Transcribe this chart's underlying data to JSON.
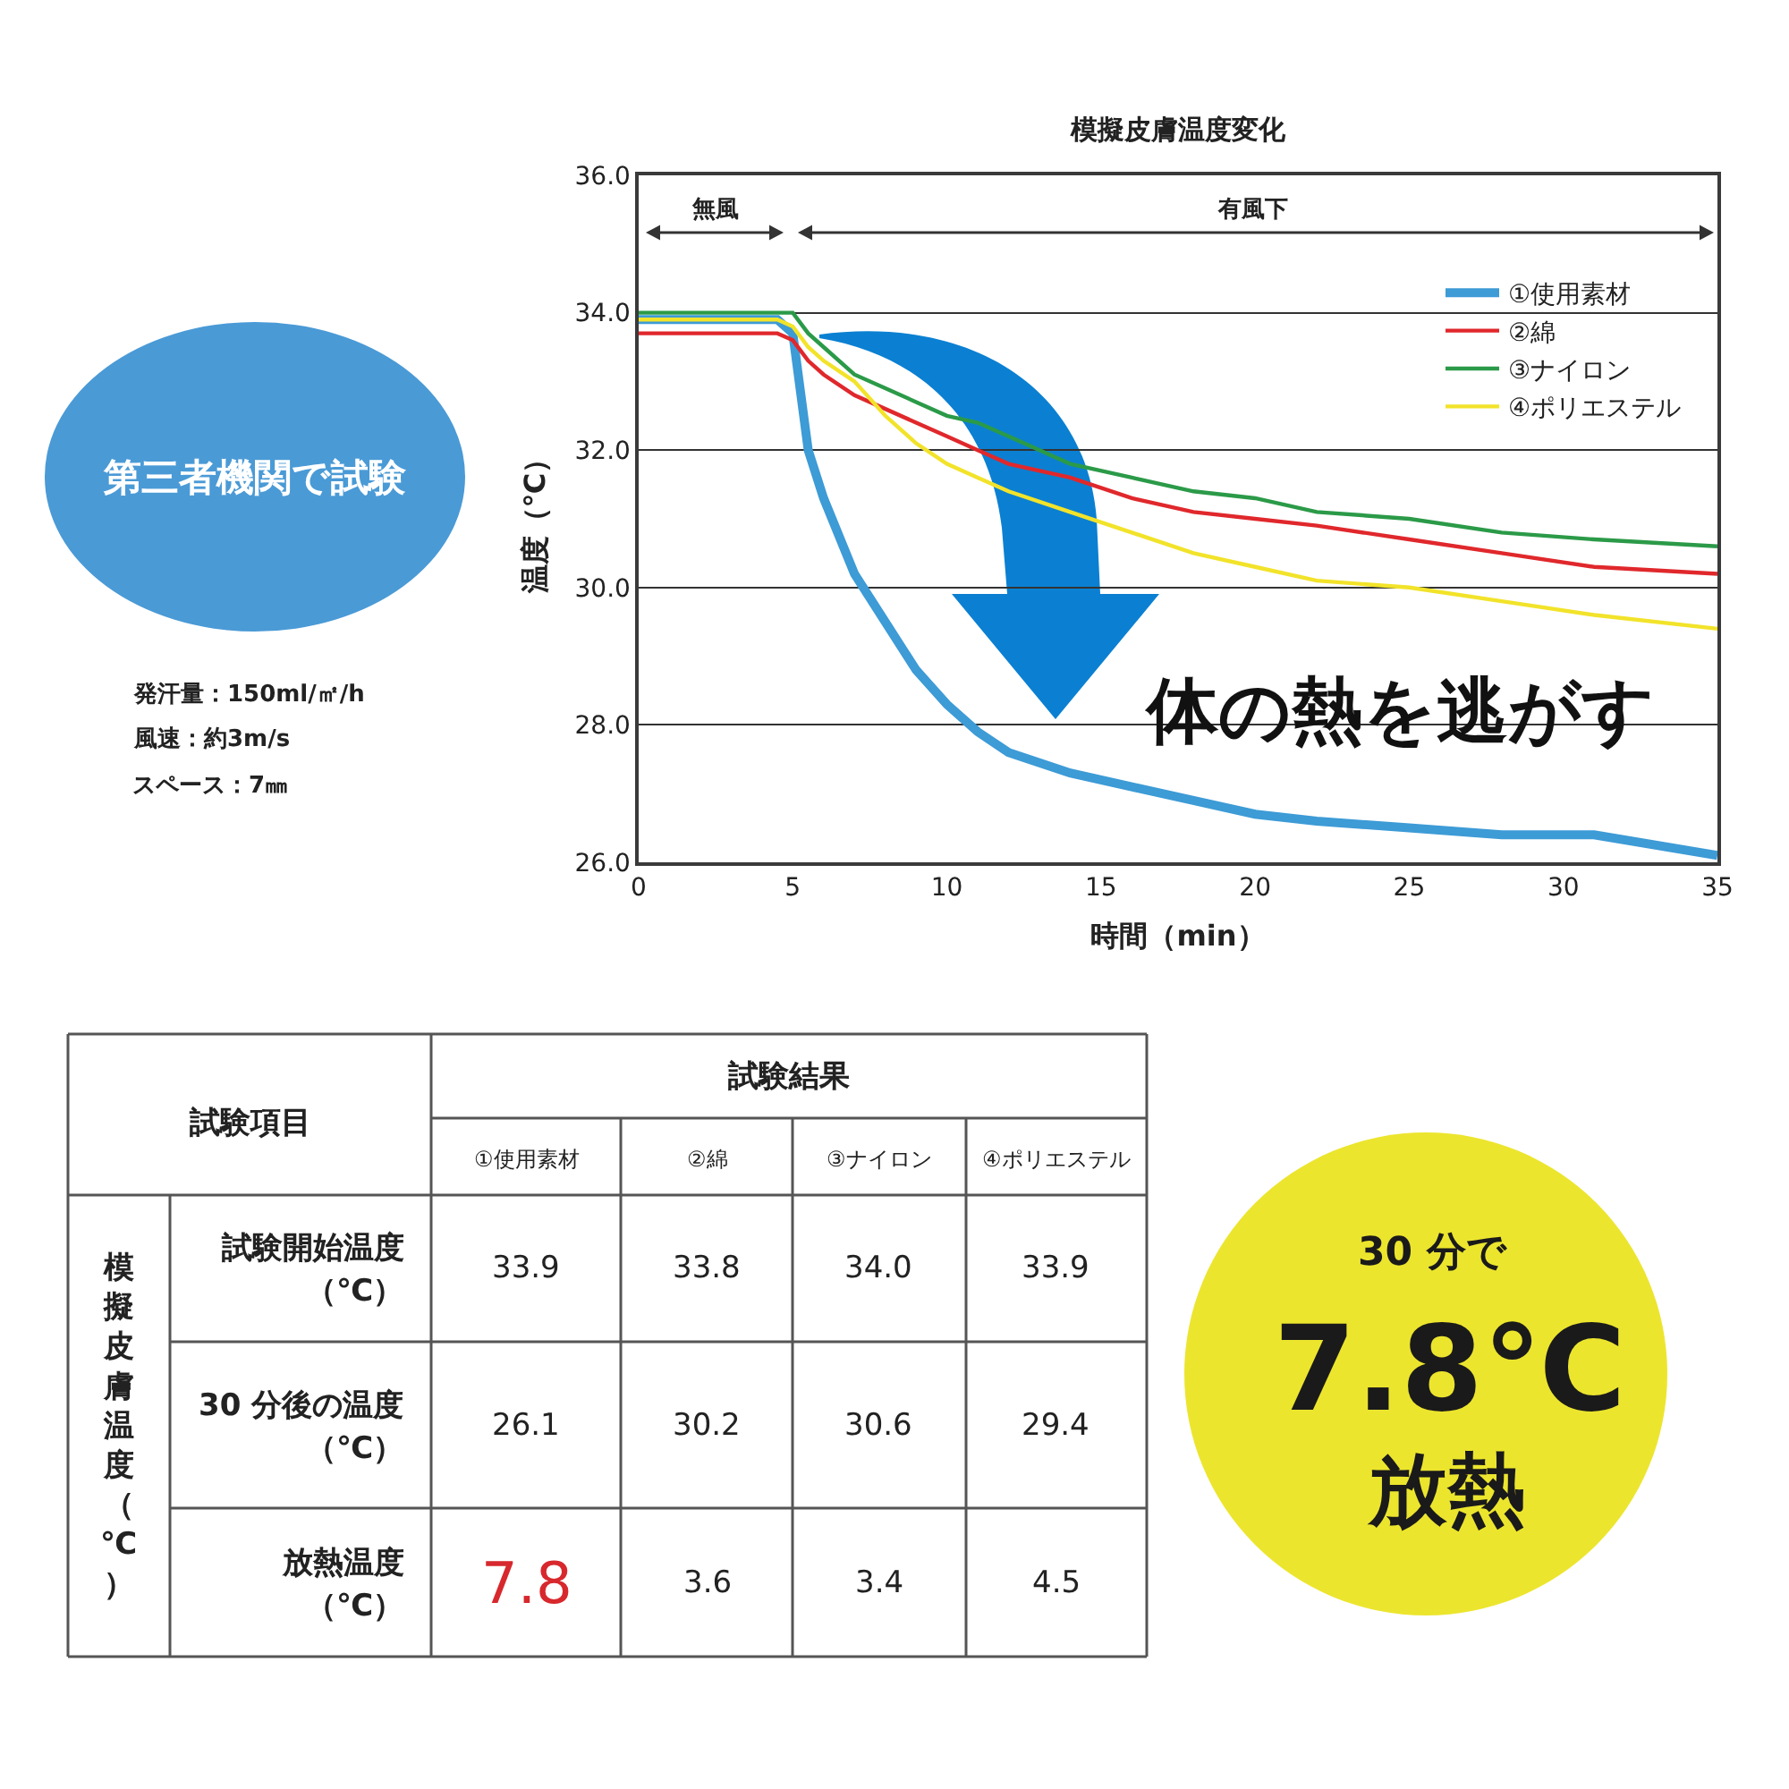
{
  "chart_data": {
    "type": "line",
    "title": "模擬皮膚温度変化",
    "xlabel": "時間（min）",
    "ylabel": "温度（℃）",
    "x": [
      0,
      4.5,
      5,
      5.5,
      6,
      7,
      8,
      9,
      10,
      11,
      12,
      14,
      16,
      18,
      20,
      22,
      25,
      28,
      31,
      35
    ],
    "series": [
      {
        "name": "①使用素材",
        "color": "#3d9bd6",
        "values": [
          33.9,
          33.9,
          33.7,
          32.0,
          31.3,
          30.2,
          29.5,
          28.8,
          28.3,
          27.9,
          27.6,
          27.3,
          27.1,
          26.9,
          26.7,
          26.6,
          26.5,
          26.4,
          26.4,
          26.1
        ]
      },
      {
        "name": "②綿",
        "color": "#e0282c",
        "values": [
          33.7,
          33.7,
          33.6,
          33.3,
          33.1,
          32.8,
          32.6,
          32.4,
          32.2,
          32.0,
          31.8,
          31.6,
          31.3,
          31.1,
          31.0,
          30.9,
          30.7,
          30.5,
          30.3,
          30.2
        ]
      },
      {
        "name": "③ナイロン",
        "color": "#2b9a48",
        "values": [
          34.0,
          34.0,
          34.0,
          33.7,
          33.5,
          33.1,
          32.9,
          32.7,
          32.5,
          32.4,
          32.2,
          31.8,
          31.6,
          31.4,
          31.3,
          31.1,
          31.0,
          30.8,
          30.7,
          30.6
        ]
      },
      {
        "name": "④ポリエステル",
        "color": "#f2e32a",
        "values": [
          33.9,
          33.9,
          33.8,
          33.5,
          33.3,
          33.0,
          32.5,
          32.1,
          31.8,
          31.6,
          31.4,
          31.1,
          30.8,
          30.5,
          30.3,
          30.1,
          30.0,
          29.8,
          29.6,
          29.4
        ]
      }
    ],
    "xlim": [
      0,
      35
    ],
    "xticks": [
      0,
      5,
      10,
      15,
      20,
      25,
      30,
      35
    ],
    "ylim": [
      26,
      36
    ],
    "yticks": [
      {
        "value": 26,
        "label": "26.0"
      },
      {
        "value": 28,
        "label": "28.0"
      },
      {
        "value": 30,
        "label": "30.0"
      },
      {
        "value": 32,
        "label": "32.0"
      },
      {
        "value": 34,
        "label": "34.0"
      },
      {
        "value": 36,
        "label": "36.0"
      }
    ],
    "grid": "y",
    "legend": "top right",
    "line_style": "solid",
    "annotations": [
      "無風",
      "有風下",
      "第三者機関で試験",
      "発汗量：150ml/㎡/h",
      "風速：約3m/s",
      "スペース：7㎜",
      "体の熱を逃がす",
      "試験項目",
      "試験結果",
      "①使用素材",
      "②綿",
      "③ナイロン",
      "④ポリエステル",
      "模擬皮膚温度（℃）",
      "試験開始温度",
      "（℃）",
      "33.9",
      "33.8",
      "34.0",
      "33.9",
      "30 分後の温度",
      "（℃）",
      "26.1",
      "30.2",
      "30.6",
      "29.4",
      "放熱温度",
      "（℃）",
      "7.8",
      "3.6",
      "3.4",
      "4.5",
      "30 分で",
      "7.8℃",
      "放熱"
    ]
  }
}
